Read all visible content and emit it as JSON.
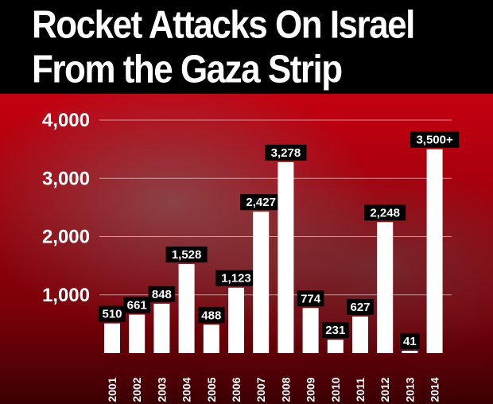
{
  "header": {
    "title_line_1": "Rocket Attacks On Israel",
    "title_line_2": "From the Gaza Strip"
  },
  "colors": {
    "header_bg": "#000000",
    "bar": "#ffffff",
    "label_bg": "#000000",
    "label_text": "#ffffff",
    "background": "#b0000c"
  },
  "chart_data": {
    "type": "bar",
    "title": "Rocket Attacks On Israel From the Gaza Strip",
    "xlabel": "",
    "ylabel": "",
    "ylim": [
      0,
      4000
    ],
    "yticks": [
      1000,
      2000,
      3000,
      4000
    ],
    "ytick_labels": [
      "1,000",
      "2,000",
      "3,000",
      "4,000"
    ],
    "grid": true,
    "categories": [
      "2001",
      "2002",
      "2003",
      "2004",
      "2005",
      "2006",
      "2007",
      "2008",
      "2009",
      "2010",
      "2011",
      "2012",
      "2013",
      "2014"
    ],
    "values": [
      510,
      661,
      848,
      1528,
      488,
      1123,
      2427,
      3278,
      774,
      231,
      627,
      2248,
      41,
      3500
    ],
    "value_labels": [
      "510",
      "661",
      "848",
      "1,528",
      "488",
      "1,123",
      "2,427",
      "3,278",
      "774",
      "231",
      "627",
      "2,248",
      "41",
      "3,500+"
    ]
  }
}
